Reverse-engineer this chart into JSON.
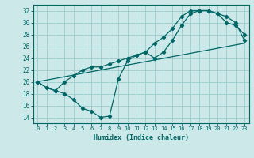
{
  "xlabel": "Humidex (Indice chaleur)",
  "bg_color": "#cce8e8",
  "grid_color": "#99cccc",
  "line_color": "#006666",
  "xlim": [
    -0.5,
    23.5
  ],
  "ylim": [
    13.0,
    33.0
  ],
  "xticks": [
    0,
    1,
    2,
    3,
    4,
    5,
    6,
    7,
    8,
    9,
    10,
    11,
    12,
    13,
    14,
    15,
    16,
    17,
    18,
    19,
    20,
    21,
    22,
    23
  ],
  "yticks": [
    14,
    16,
    18,
    20,
    22,
    24,
    26,
    28,
    30,
    32
  ],
  "line1_x": [
    0,
    1,
    2,
    3,
    4,
    5,
    6,
    7,
    8,
    9,
    10,
    11,
    12,
    13,
    14,
    15,
    16,
    17,
    18,
    19,
    20,
    21,
    22,
    23
  ],
  "line1_y": [
    20.0,
    19.0,
    18.5,
    18.0,
    17.0,
    15.5,
    15.0,
    14.0,
    14.2,
    20.5,
    23.5,
    24.5,
    25.0,
    24.0,
    25.0,
    27.0,
    29.5,
    31.5,
    32.0,
    32.0,
    31.5,
    30.0,
    29.5,
    28.0
  ],
  "line2_x": [
    0,
    1,
    2,
    3,
    4,
    5,
    6,
    7,
    8,
    9,
    10,
    11,
    12,
    13,
    14,
    15,
    16,
    17,
    18,
    19,
    20,
    21,
    22,
    23
  ],
  "line2_y": [
    20.0,
    19.0,
    18.5,
    20.0,
    21.0,
    22.0,
    22.5,
    22.5,
    23.0,
    23.5,
    24.0,
    24.5,
    25.0,
    26.5,
    27.5,
    29.0,
    31.0,
    32.0,
    32.0,
    32.0,
    31.5,
    31.0,
    30.0,
    27.0
  ],
  "line3_x": [
    0,
    23
  ],
  "line3_y": [
    20.0,
    26.5
  ],
  "figw": 3.2,
  "figh": 2.0,
  "dpi": 100
}
